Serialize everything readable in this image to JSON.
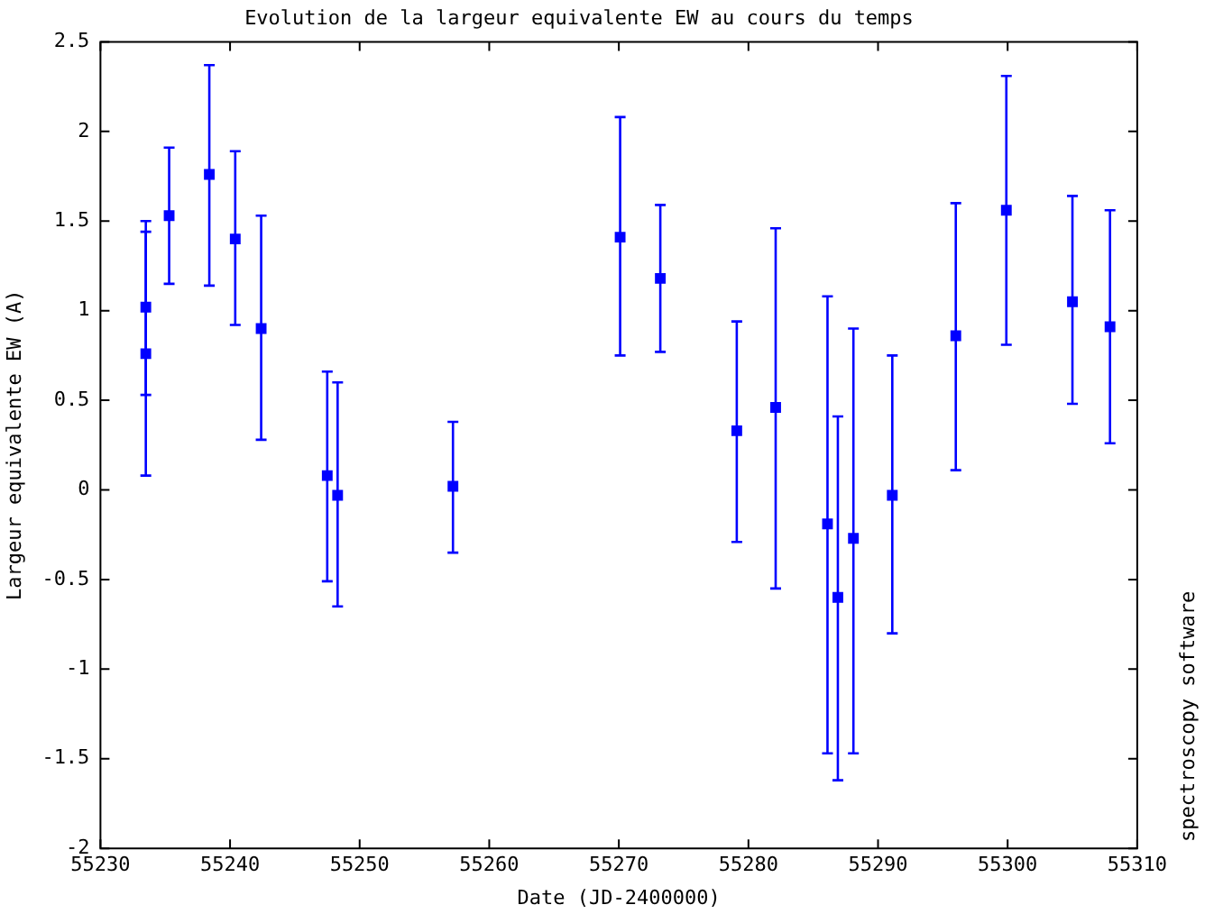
{
  "chart_data": {
    "type": "scatter",
    "title": "Evolution de la largeur equivalente EW au cours du temps",
    "xlabel": "Date (JD-2400000)",
    "ylabel": "Largeur equivalente EW (A)",
    "annotations": [
      "spectroscopy software"
    ],
    "x": [
      55233.5,
      55233.5,
      55235.3,
      55238.4,
      55240.4,
      55242.4,
      55247.5,
      55248.3,
      55257.2,
      55270.1,
      55273.2,
      55279.1,
      55282.1,
      55286.1,
      55286.9,
      55288.1,
      55291.1,
      55296.0,
      55299.9,
      55305.0,
      55307.9
    ],
    "series": [
      {
        "color": "#0000ff",
        "values": [
          1.02,
          0.76,
          1.53,
          1.76,
          1.4,
          0.9,
          0.08,
          -0.03,
          0.02,
          1.41,
          1.18,
          0.33,
          0.46,
          -0.19,
          -0.6,
          -0.27,
          -0.03,
          0.86,
          1.56,
          1.05,
          0.91
        ],
        "errors": [
          [
            0.53,
            1.5
          ],
          [
            0.08,
            1.44
          ],
          [
            1.15,
            1.91
          ],
          [
            1.14,
            2.37
          ],
          [
            0.92,
            1.89
          ],
          [
            0.28,
            1.53
          ],
          [
            -0.51,
            0.66
          ],
          [
            -0.65,
            0.6
          ],
          [
            -0.35,
            0.38
          ],
          [
            0.75,
            2.08
          ],
          [
            0.77,
            1.59
          ],
          [
            -0.29,
            0.94
          ],
          [
            -0.55,
            1.46
          ],
          [
            -1.47,
            1.08
          ],
          [
            -1.62,
            0.41
          ],
          [
            -1.47,
            0.9
          ],
          [
            -0.8,
            0.75
          ],
          [
            0.11,
            1.6
          ],
          [
            0.81,
            2.31
          ],
          [
            0.48,
            1.64
          ],
          [
            0.26,
            1.56
          ]
        ]
      }
    ],
    "xlim": [
      55230,
      55310
    ],
    "xticks": [
      55230,
      55240,
      55250,
      55260,
      55270,
      55280,
      55290,
      55300,
      55310
    ],
    "ylim": [
      -2,
      2.5
    ],
    "yticks": [
      -2,
      -1.5,
      -1,
      -0.5,
      0,
      0.5,
      1,
      1.5,
      2,
      2.5
    ],
    "grid": false,
    "legend": false,
    "marker": "square"
  }
}
